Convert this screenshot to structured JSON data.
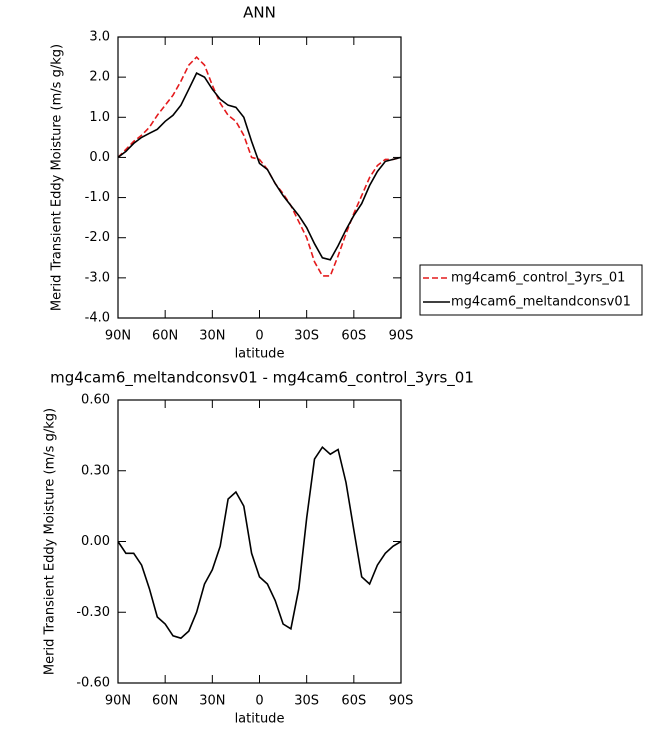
{
  "chart_data": [
    {
      "type": "line",
      "title": "ANN",
      "xlabel": "latitude",
      "ylabel": "Merid Transient Eddy Moisture (m/s g/kg)",
      "x": [
        90,
        85,
        80,
        75,
        70,
        65,
        60,
        55,
        50,
        45,
        40,
        35,
        30,
        25,
        20,
        15,
        10,
        5,
        0,
        -5,
        -10,
        -15,
        -20,
        -25,
        -30,
        -35,
        -40,
        -45,
        -50,
        -55,
        -60,
        -65,
        -70,
        -75,
        -80,
        -85,
        -90
      ],
      "series": [
        {
          "name": "mg4cam6_control_3yrs_01",
          "color": "#e41a1c",
          "dashed": true,
          "values": [
            0,
            0.2,
            0.4,
            0.55,
            0.75,
            1.05,
            1.3,
            1.55,
            1.9,
            2.3,
            2.5,
            2.3,
            1.8,
            1.35,
            1.05,
            0.9,
            0.55,
            0.0,
            -0.05,
            -0.3,
            -0.65,
            -0.9,
            -1.2,
            -1.6,
            -2.0,
            -2.6,
            -2.95,
            -2.95,
            -2.45,
            -1.9,
            -1.4,
            -0.95,
            -0.5,
            -0.2,
            -0.05,
            -0.05,
            0
          ]
        },
        {
          "name": "mg4cam6_meltandconsv01",
          "color": "#000000",
          "dashed": false,
          "values": [
            0,
            0.15,
            0.35,
            0.5,
            0.6,
            0.7,
            0.9,
            1.05,
            1.3,
            1.7,
            2.1,
            2.0,
            1.7,
            1.45,
            1.3,
            1.25,
            1.0,
            0.4,
            -0.15,
            -0.3,
            -0.65,
            -0.95,
            -1.2,
            -1.45,
            -1.75,
            -2.15,
            -2.5,
            -2.55,
            -2.2,
            -1.8,
            -1.45,
            -1.15,
            -0.7,
            -0.35,
            -0.1,
            -0.05,
            0
          ]
        }
      ],
      "xlim": [
        90,
        -90
      ],
      "xticks": [
        {
          "value": 90,
          "label": "90N"
        },
        {
          "value": 60,
          "label": "60N"
        },
        {
          "value": 30,
          "label": "30N"
        },
        0,
        {
          "value": -30,
          "label": "30S"
        },
        {
          "value": -60,
          "label": "60S"
        },
        {
          "value": -90,
          "label": "90S"
        }
      ],
      "ylim": [
        -4,
        3
      ],
      "yticks": [
        {
          "value": 3,
          "label": "3.0"
        },
        {
          "value": 2,
          "label": "2.0"
        },
        {
          "value": 1,
          "label": "1.0"
        },
        {
          "value": 0,
          "label": "0.0"
        },
        {
          "value": -1,
          "label": "-1.0"
        },
        {
          "value": -2,
          "label": "-2.0"
        },
        {
          "value": -3,
          "label": "-3.0"
        },
        {
          "value": -4,
          "label": "-4.0"
        }
      ],
      "legend": "right"
    },
    {
      "type": "line",
      "title": "mg4cam6_meltandconsv01 - mg4cam6_control_3yrs_01",
      "xlabel": "latitude",
      "ylabel": "Merid Transient Eddy Moisture (m/s g/kg)",
      "x": [
        90,
        85,
        80,
        75,
        70,
        65,
        60,
        55,
        50,
        45,
        40,
        35,
        30,
        25,
        20,
        15,
        10,
        5,
        0,
        -5,
        -10,
        -15,
        -20,
        -25,
        -30,
        -35,
        -40,
        -45,
        -50,
        -55,
        -60,
        -65,
        -70,
        -75,
        -80,
        -85,
        -90
      ],
      "series": [
        {
          "color": "#000000",
          "dashed": false,
          "values": [
            0,
            -0.05,
            -0.05,
            -0.1,
            -0.2,
            -0.32,
            -0.35,
            -0.4,
            -0.41,
            -0.38,
            -0.3,
            -0.18,
            -0.12,
            -0.02,
            0.18,
            0.21,
            0.15,
            -0.05,
            -0.15,
            -0.18,
            -0.25,
            -0.35,
            -0.37,
            -0.2,
            0.1,
            0.35,
            0.4,
            0.37,
            0.39,
            0.25,
            0.05,
            -0.15,
            -0.18,
            -0.1,
            -0.05,
            -0.02,
            0
          ]
        }
      ],
      "xlim": [
        90,
        -90
      ],
      "xticks": [
        {
          "value": 90,
          "label": "90N"
        },
        {
          "value": 60,
          "label": "60N"
        },
        {
          "value": 30,
          "label": "30N"
        },
        0,
        {
          "value": -30,
          "label": "30S"
        },
        {
          "value": -60,
          "label": "60S"
        },
        {
          "value": -90,
          "label": "90S"
        }
      ],
      "ylim": [
        -0.6,
        0.6
      ],
      "yticks": [
        {
          "value": 0.6,
          "label": "0.60"
        },
        {
          "value": 0.3,
          "label": "0.30"
        },
        {
          "value": 0,
          "label": "0.00"
        },
        {
          "value": -0.3,
          "label": "-0.30"
        },
        {
          "value": -0.6,
          "label": "-0.60"
        }
      ]
    }
  ]
}
